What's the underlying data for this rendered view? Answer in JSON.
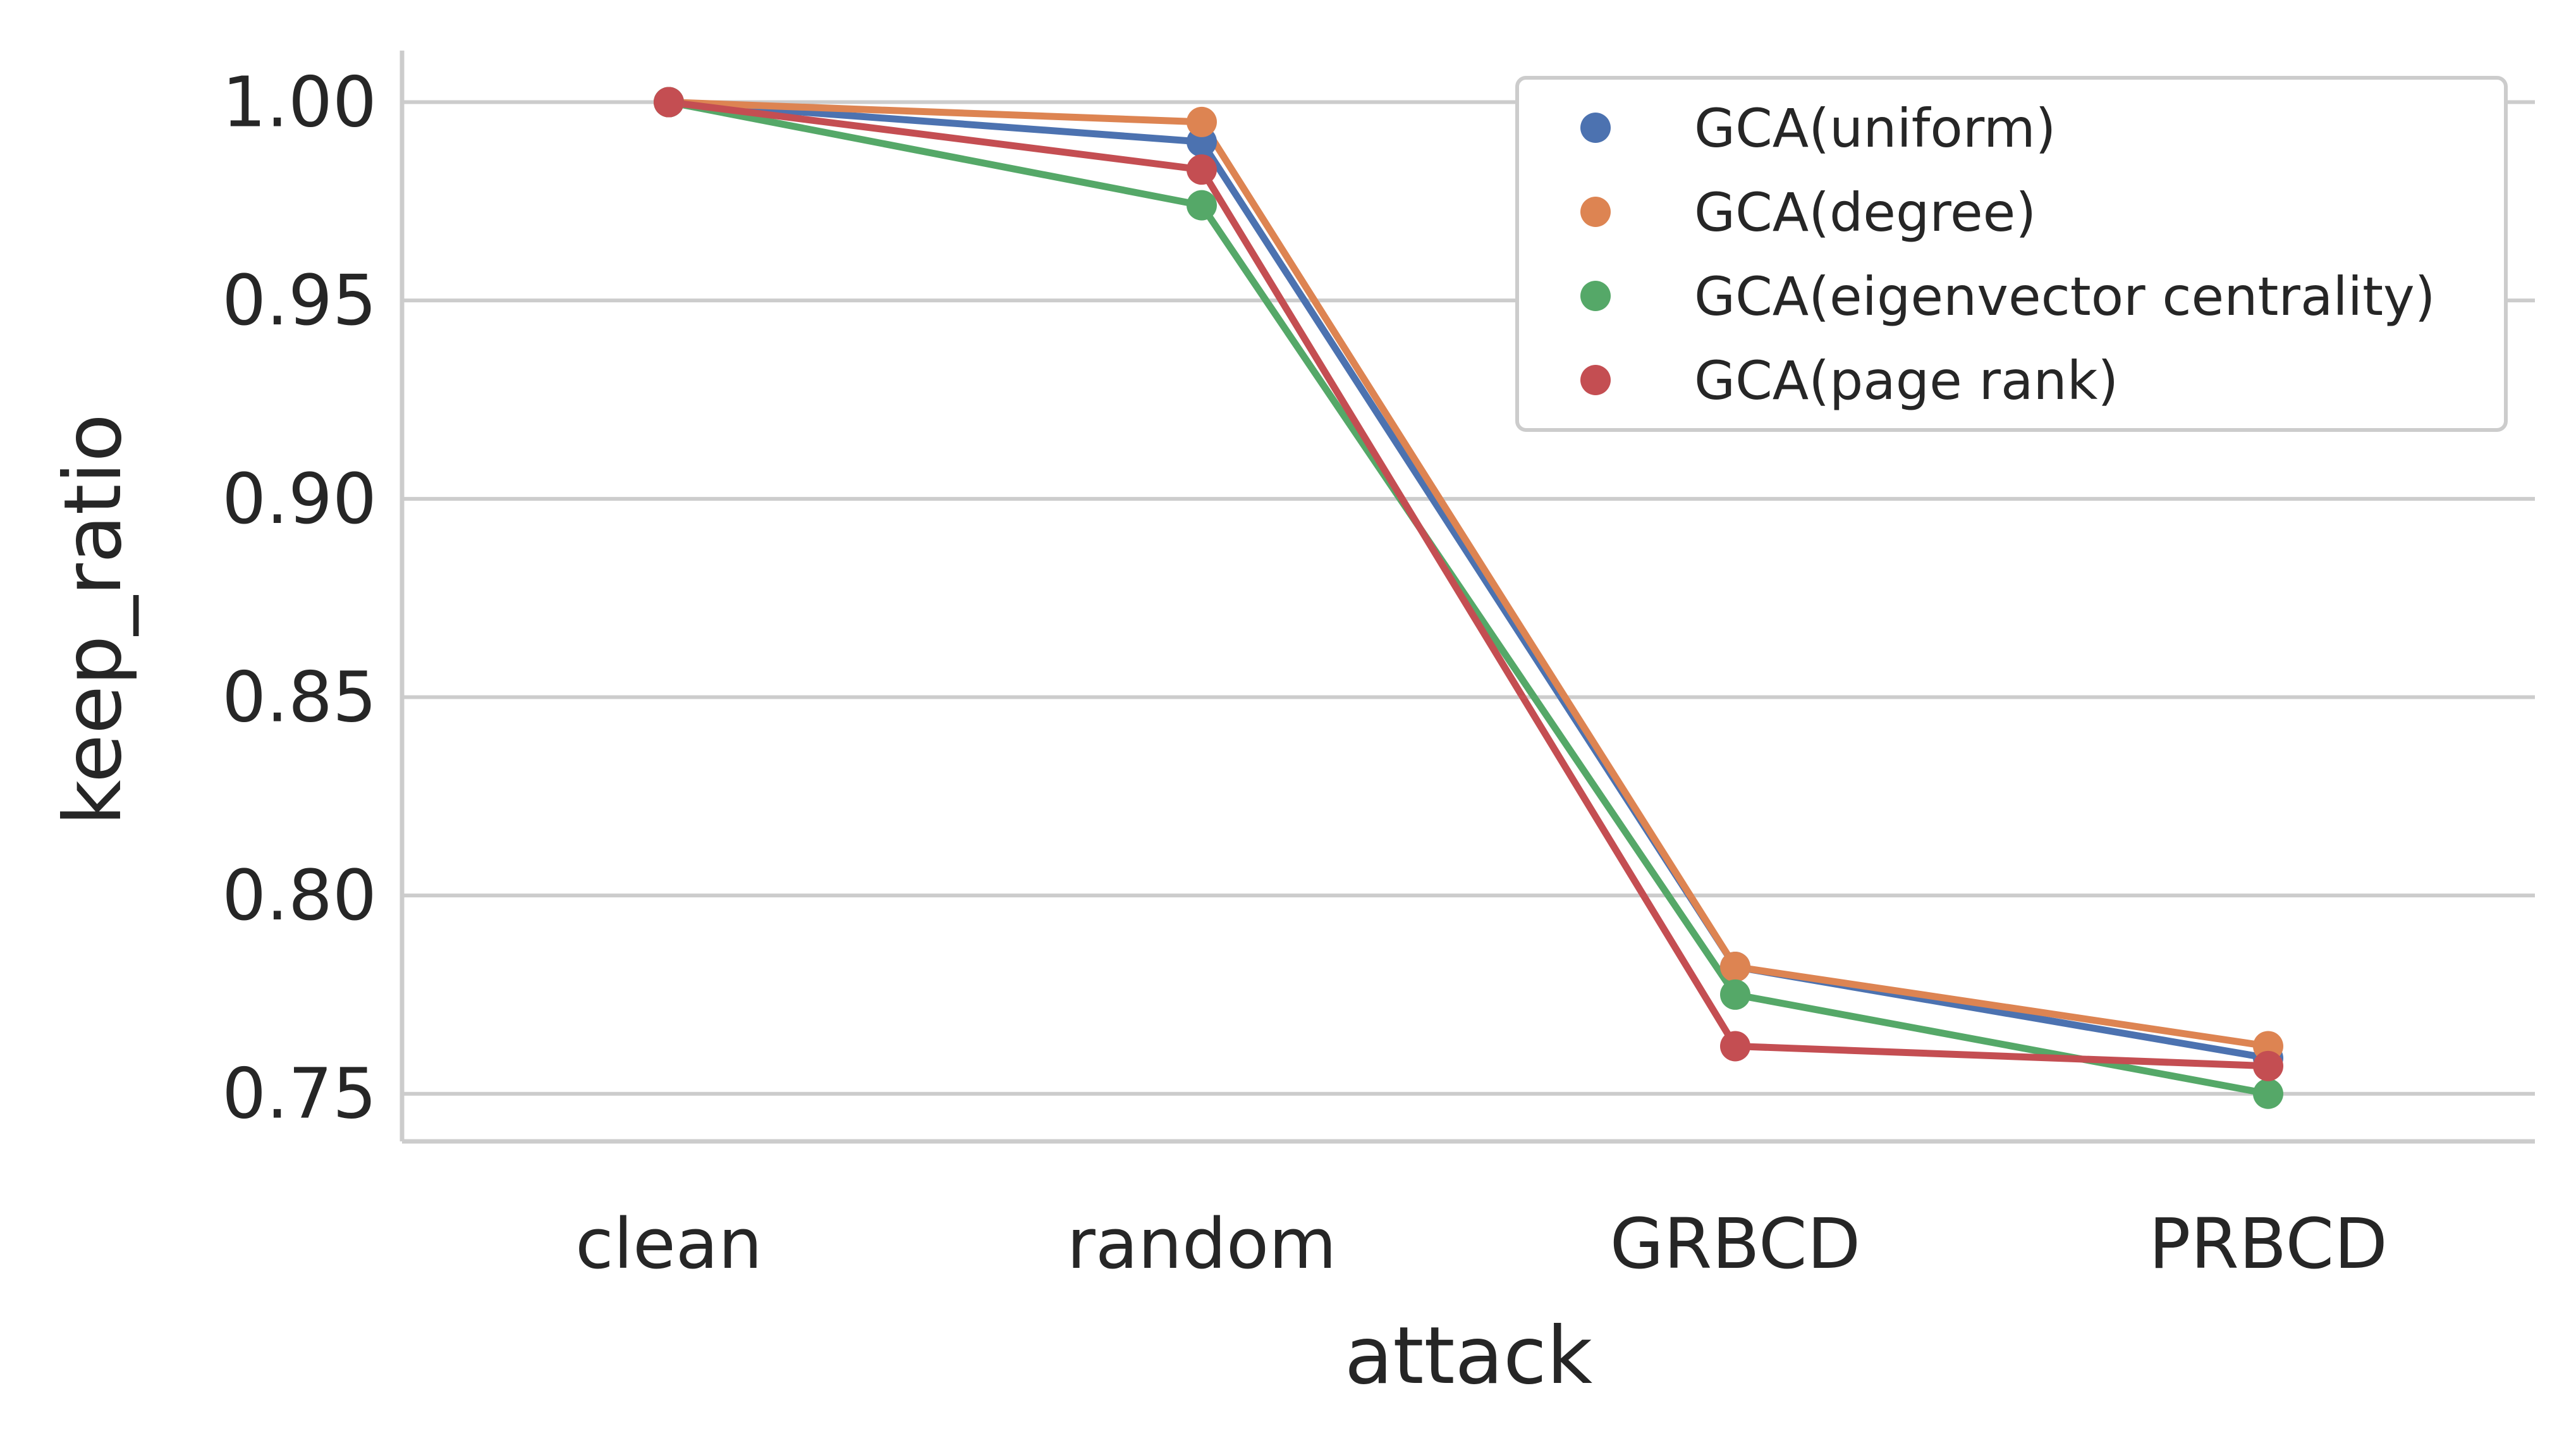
{
  "chart_data": {
    "type": "line",
    "xlabel": "attack",
    "ylabel": "keep_ratio",
    "categories": [
      "clean",
      "random",
      "GRBCD",
      "PRBCD"
    ],
    "ylim": [
      0.738,
      1.013
    ],
    "yticks": [
      0.75,
      0.8,
      0.85,
      0.9,
      0.95,
      1.0
    ],
    "ytick_labels": [
      "0.75",
      "0.80",
      "0.85",
      "0.90",
      "0.95",
      "1.00"
    ],
    "grid": "horizontal",
    "legend_position": "top-right",
    "series": [
      {
        "name": "GCA(uniform)",
        "color": "#4c72b0",
        "values": [
          1.0,
          0.99,
          0.782,
          0.759
        ]
      },
      {
        "name": "GCA(degree)",
        "color": "#dd8452",
        "values": [
          1.0,
          0.995,
          0.782,
          0.762
        ]
      },
      {
        "name": "GCA(eigenvector centrality)",
        "color": "#55a868",
        "values": [
          1.0,
          0.974,
          0.775,
          0.75
        ]
      },
      {
        "name": "GCA(page rank)",
        "color": "#c44e52",
        "values": [
          1.0,
          0.983,
          0.762,
          0.757
        ]
      }
    ]
  },
  "style": {
    "grid_color": "#cccccc",
    "text_color": "#262626"
  }
}
